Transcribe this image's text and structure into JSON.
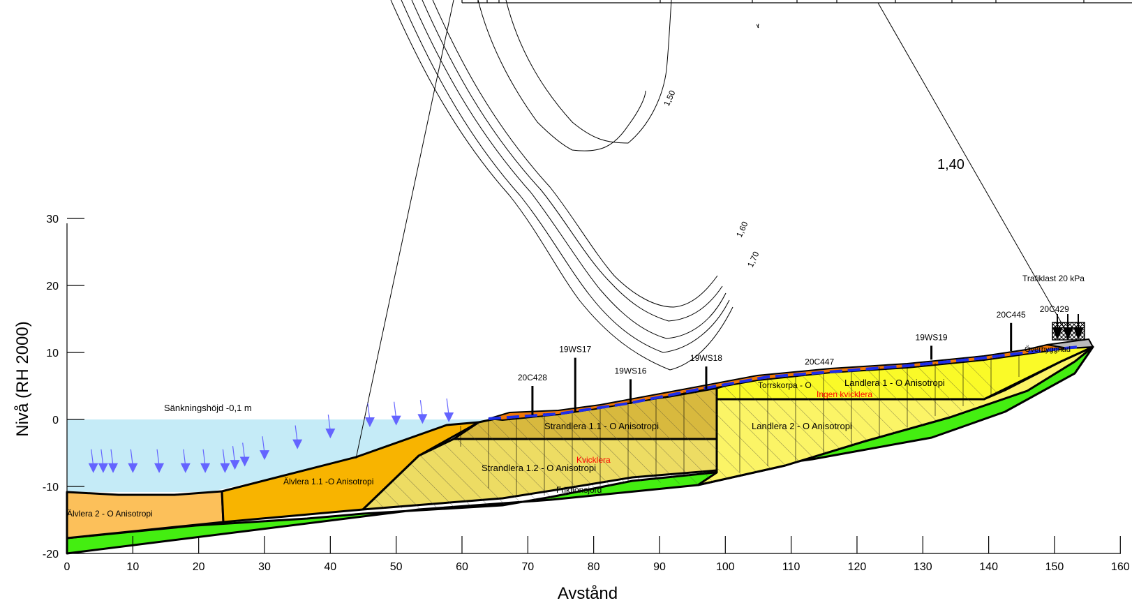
{
  "axes": {
    "xlabel": "Avstånd",
    "ylabel": "Nivå (RH 2000)",
    "xlim": [
      0,
      160
    ],
    "ylim": [
      -20,
      30
    ],
    "xticks": [
      0,
      10,
      20,
      30,
      40,
      50,
      60,
      70,
      80,
      90,
      100,
      110,
      120,
      130,
      140,
      150,
      160
    ],
    "yticks": [
      -20,
      -10,
      0,
      10,
      20,
      30
    ]
  },
  "water": {
    "label": "Sänkningshöjd -0,1 m",
    "level": 0
  },
  "layers": [
    {
      "id": "alvlera2",
      "label": "Älvlera 2 - O Anisotropi",
      "color": "#fcc05a"
    },
    {
      "id": "alvlera11",
      "label": "Älvlera 1.1 -O Anisotropi",
      "color": "#f8b400"
    },
    {
      "id": "strandlera11",
      "label": "Strandlera 1.1 - O  Anisotropi",
      "color": "#d8b93e"
    },
    {
      "id": "strandlera12",
      "label": "Strandlera 1.2 - O  Anisotropi",
      "color": "#eddc63"
    },
    {
      "id": "landlera1",
      "label": "Landlera 1 - O  Anisotropi",
      "color": "#fafa28"
    },
    {
      "id": "landlera2",
      "label": "Landlera 2 - O  Anisotropi",
      "color": "#fbf466"
    },
    {
      "id": "torrskorpa",
      "label": "Torrskorpa - O",
      "color": "#f07808"
    },
    {
      "id": "friktionsjord",
      "label": "Friktionsjord",
      "color": "#44ee11"
    },
    {
      "id": "overbyggnad",
      "label": "Överbyggnad",
      "color": "#bbbbbb"
    }
  ],
  "annotations": {
    "kvicklera": "Kvicklera",
    "ingen_kvicklera": "Ingen kvicklera",
    "trafiklast": "Trafiklast 20 kPa",
    "fos_main": "1,40",
    "contour_labels": [
      "1,50",
      "1,60",
      "1,70"
    ]
  },
  "boreholes": [
    {
      "id": "20C428",
      "x": 70.7
    },
    {
      "id": "19WS17",
      "x": 77.2
    },
    {
      "id": "19WS16",
      "x": 85.6
    },
    {
      "id": "19WS18",
      "x": 97.1
    },
    {
      "id": "20C447",
      "x": 114.3
    },
    {
      "id": "19WS19",
      "x": 131.3
    },
    {
      "id": "20C445",
      "x": 143.4
    },
    {
      "id": "20C429",
      "x": 152.1
    }
  ],
  "colors": {
    "water": "#c5ebf7",
    "load_arrow": "#6464ff",
    "phreatic": "#1e2eea",
    "red_text": "#ff0000"
  }
}
